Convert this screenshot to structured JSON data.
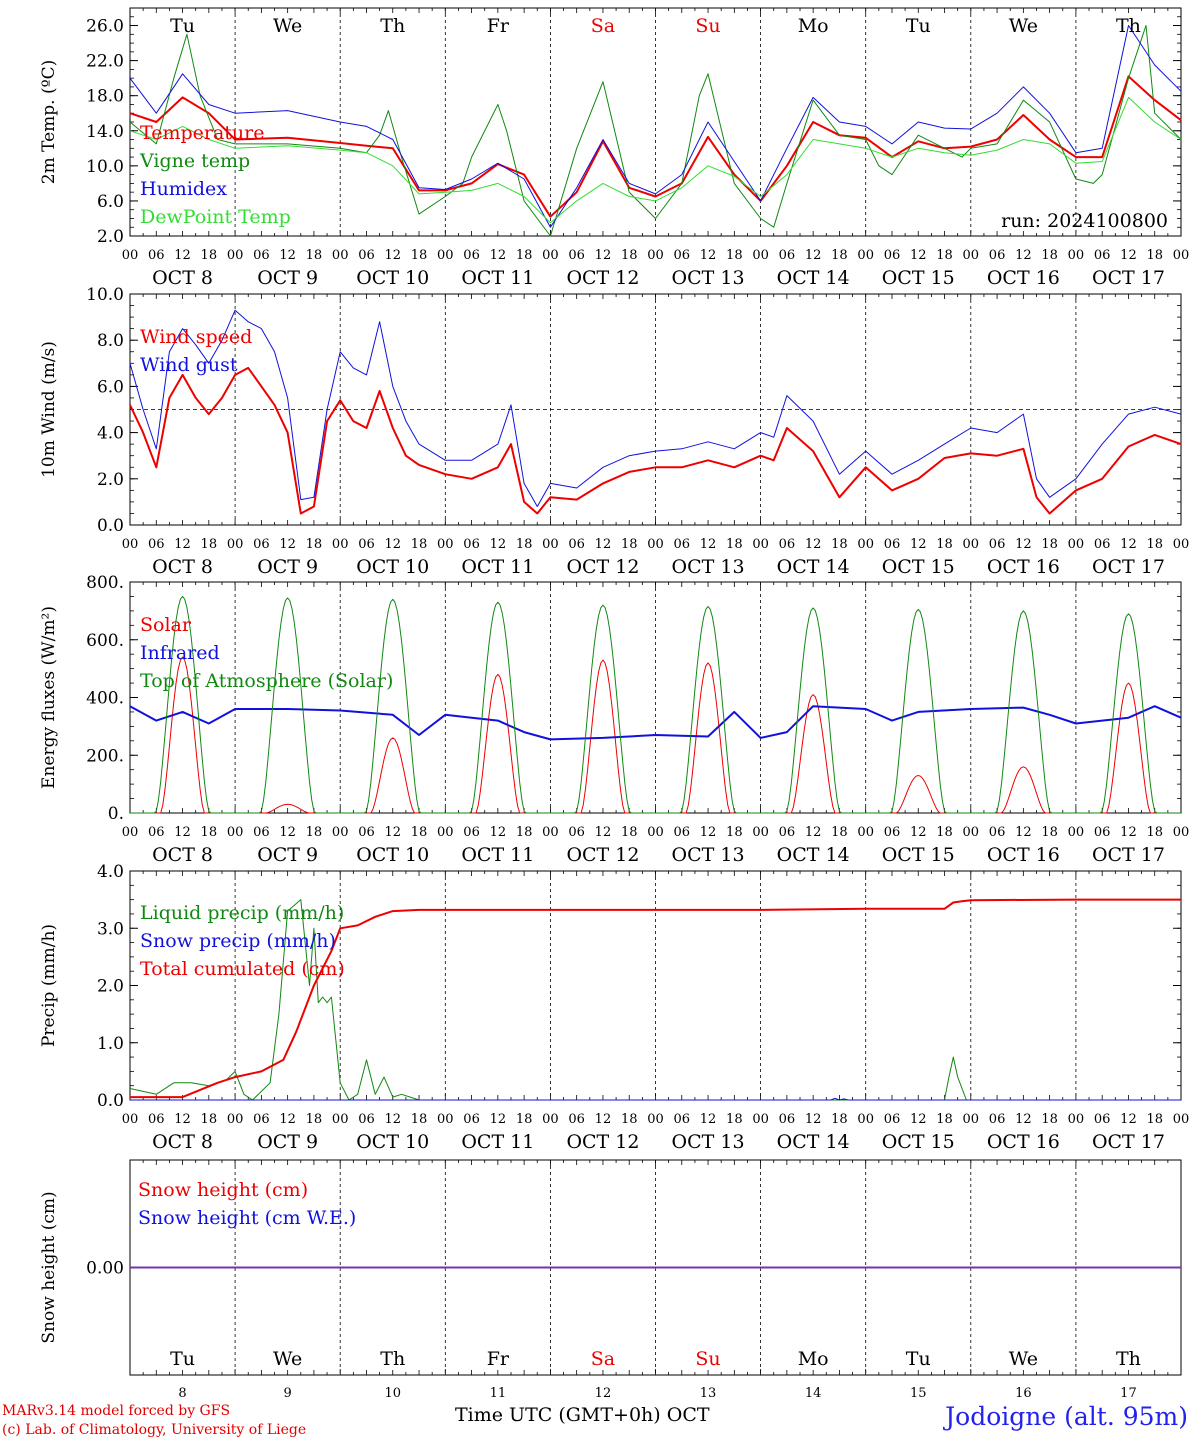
{
  "run_label": "run: 2024100800",
  "days": [
    "Tu",
    "We",
    "Th",
    "Fr",
    "Sa",
    "Su",
    "Mo",
    "Tu",
    "We",
    "Th"
  ],
  "weekend_flags": [
    false,
    false,
    false,
    false,
    true,
    true,
    false,
    false,
    false,
    false
  ],
  "dates": [
    "OCT  8",
    "OCT  9",
    "OCT 10",
    "OCT 11",
    "OCT 12",
    "OCT 13",
    "OCT 14",
    "OCT 15",
    "OCT 16",
    "OCT 17"
  ],
  "hour_ticks": [
    "00",
    "06",
    "12",
    "18"
  ],
  "last_hour_tick": "00",
  "bottom_day_numbers": [
    "8",
    "9",
    "10",
    "11",
    "12",
    "13",
    "14",
    "15",
    "16",
    "17"
  ],
  "xlabel": "Time UTC (GMT+0h)",
  "month_label": "OCT",
  "footer": {
    "line1": "MARv3.14 model forced by GFS",
    "line2": "(c) Lab. of Climatology, University of Liege",
    "location": "Jodoigne (alt. 95m)"
  },
  "colors": {
    "red": "#ee0000",
    "green": "#118811",
    "blue": "#1111dd",
    "light_green": "#33dd33",
    "purple": "#7733aa",
    "weekend": "#ee0000"
  },
  "chart_data": [
    {
      "type": "line",
      "id": "temp",
      "ylabel": "2m Temp. (ºC)",
      "ylim": [
        2,
        28
      ],
      "yticks": [
        "2.0",
        "6.0",
        "10.0",
        "14.0",
        "18.0",
        "22.0",
        "26.0"
      ],
      "ytick_values": [
        2,
        6,
        10,
        14,
        18,
        22,
        26
      ],
      "x_unit": "hours since OCT 8 00 UTC",
      "series": [
        {
          "name": "Temperature",
          "color": "red",
          "width": 2,
          "x": [
            0,
            6,
            12,
            18,
            24,
            36,
            48,
            54,
            60,
            66,
            72,
            78,
            84,
            90,
            96,
            102,
            108,
            114,
            120,
            126,
            132,
            138,
            144,
            150,
            156,
            162,
            168,
            174,
            180,
            186,
            192,
            198,
            204,
            210,
            216,
            222,
            228,
            234,
            240
          ],
          "y": [
            16,
            15,
            17.8,
            16,
            13,
            13.2,
            12.6,
            12.3,
            12,
            7.2,
            7.2,
            8,
            10.2,
            9,
            4.2,
            7,
            12.8,
            7.5,
            6.5,
            8,
            13.3,
            9,
            6,
            10,
            15,
            13.5,
            13.2,
            11,
            12.8,
            12,
            12.2,
            13,
            15.8,
            13,
            11,
            11,
            20.2,
            17.5,
            15.2
          ]
        },
        {
          "name": "Vigne temp",
          "color": "green",
          "width": 1,
          "x": [
            0,
            6,
            10,
            13,
            16,
            20,
            24,
            36,
            48,
            54,
            57,
            59,
            62,
            66,
            72,
            76,
            78,
            84,
            86,
            90,
            96,
            102,
            108,
            114,
            120,
            126,
            130,
            132,
            138,
            144,
            147,
            150,
            156,
            162,
            168,
            171,
            174,
            180,
            186,
            190,
            192,
            198,
            204,
            210,
            216,
            220,
            222,
            228,
            232,
            234,
            240
          ],
          "y": [
            15,
            12.5,
            20,
            25,
            18,
            13,
            12.5,
            12.5,
            12,
            11.5,
            13.5,
            16.3,
            11,
            4.5,
            6.5,
            8,
            11,
            17,
            14,
            6,
            2,
            12,
            19.6,
            7,
            4,
            8,
            18,
            20.5,
            8,
            4,
            3,
            8,
            17.5,
            13.5,
            13,
            10,
            9,
            13.5,
            12,
            11,
            12,
            12.5,
            17.5,
            15,
            8.5,
            8,
            9,
            20,
            26,
            16,
            13
          ]
        },
        {
          "name": "Humidex",
          "color": "blue",
          "width": 1,
          "x": [
            0,
            6,
            12,
            18,
            24,
            36,
            48,
            54,
            60,
            66,
            72,
            78,
            84,
            90,
            96,
            102,
            108,
            114,
            120,
            126,
            132,
            138,
            144,
            150,
            156,
            162,
            168,
            174,
            180,
            186,
            192,
            198,
            204,
            210,
            216,
            222,
            228,
            234,
            240
          ],
          "y": [
            20,
            16,
            20.5,
            17,
            16,
            16.3,
            15,
            14.5,
            13,
            7.5,
            7.3,
            8.5,
            10.3,
            8.5,
            3,
            7.5,
            13,
            8,
            6.8,
            9,
            15,
            10.5,
            6,
            12,
            17.8,
            15,
            14.5,
            12.5,
            15,
            14.3,
            14.2,
            16,
            19,
            16,
            11.5,
            12,
            26,
            21.5,
            18.5
          ]
        },
        {
          "name": "DewPoint Temp",
          "color": "light_green",
          "width": 1,
          "x": [
            0,
            6,
            12,
            18,
            24,
            36,
            48,
            54,
            60,
            66,
            72,
            78,
            84,
            90,
            96,
            102,
            108,
            114,
            120,
            126,
            132,
            138,
            144,
            150,
            156,
            162,
            168,
            174,
            180,
            186,
            192,
            198,
            204,
            210,
            216,
            222,
            228,
            234,
            240
          ],
          "y": [
            14,
            13,
            14.5,
            13,
            12,
            12.3,
            11.8,
            11.5,
            10,
            6.8,
            7,
            7.2,
            8,
            6.5,
            3.5,
            6,
            8,
            6.5,
            6,
            7.5,
            10,
            8.8,
            6.5,
            9,
            13,
            12.5,
            12,
            11,
            12,
            11.5,
            11.2,
            11.8,
            13,
            12.5,
            10.3,
            10.5,
            17.8,
            15,
            13
          ]
        }
      ]
    },
    {
      "type": "line",
      "id": "wind",
      "ylabel": "10m Wind (m/s)",
      "ylim": [
        0,
        10
      ],
      "yticks": [
        "0.0",
        "2.0",
        "4.0",
        "6.0",
        "8.0",
        "10.0"
      ],
      "ytick_values": [
        0,
        2,
        4,
        6,
        8,
        10
      ],
      "reference_line": 5,
      "x_unit": "hours since OCT 8 00 UTC",
      "series": [
        {
          "name": "Wind speed",
          "color": "red",
          "width": 2,
          "x": [
            0,
            3,
            6,
            9,
            12,
            15,
            18,
            21,
            24,
            27,
            30,
            33,
            36,
            39,
            42,
            45,
            48,
            51,
            54,
            57,
            60,
            63,
            66,
            72,
            78,
            84,
            87,
            90,
            93,
            96,
            102,
            108,
            114,
            120,
            126,
            132,
            138,
            144,
            147,
            150,
            156,
            162,
            168,
            174,
            180,
            186,
            192,
            198,
            204,
            207,
            210,
            216,
            222,
            228,
            234,
            240
          ],
          "y": [
            5.2,
            4,
            2.5,
            5.5,
            6.5,
            5.5,
            4.8,
            5.5,
            6.5,
            6.8,
            6,
            5.2,
            4,
            0.5,
            0.8,
            4.5,
            5.4,
            4.5,
            4.2,
            5.8,
            4.2,
            3,
            2.6,
            2.2,
            2,
            2.5,
            3.5,
            1,
            0.5,
            1.2,
            1.1,
            1.8,
            2.3,
            2.5,
            2.5,
            2.8,
            2.5,
            3,
            2.8,
            4.2,
            3.2,
            1.2,
            2.5,
            1.5,
            2,
            2.9,
            3.1,
            3,
            3.3,
            1.2,
            0.5,
            1.5,
            2,
            3.4,
            3.9,
            3.5
          ]
        },
        {
          "name": "Wind gust",
          "color": "blue",
          "width": 1,
          "x": [
            0,
            3,
            6,
            9,
            12,
            15,
            18,
            21,
            24,
            27,
            30,
            33,
            36,
            39,
            42,
            45,
            48,
            51,
            54,
            57,
            60,
            63,
            66,
            72,
            78,
            84,
            87,
            90,
            93,
            96,
            102,
            108,
            114,
            120,
            126,
            132,
            138,
            144,
            147,
            150,
            156,
            162,
            168,
            174,
            180,
            186,
            192,
            198,
            204,
            207,
            210,
            216,
            222,
            228,
            234,
            240
          ],
          "y": [
            7,
            5,
            3.3,
            7.5,
            8.5,
            7.8,
            7,
            8,
            9.3,
            8.8,
            8.5,
            7.5,
            5.5,
            1.1,
            1.2,
            5,
            7.5,
            6.8,
            6.5,
            8.8,
            6,
            4.5,
            3.5,
            2.8,
            2.8,
            3.5,
            5.2,
            1.8,
            0.8,
            1.8,
            1.6,
            2.5,
            3,
            3.2,
            3.3,
            3.6,
            3.3,
            4,
            3.8,
            5.6,
            4.5,
            2.2,
            3.2,
            2.2,
            2.8,
            3.5,
            4.2,
            4,
            4.8,
            2,
            1.2,
            2,
            3.5,
            4.8,
            5.1,
            4.8
          ]
        }
      ]
    },
    {
      "type": "line",
      "id": "energy",
      "ylabel": "Energy fluxes (W/m²)",
      "ylim": [
        0,
        800
      ],
      "yticks": [
        "0.",
        "200.",
        "400.",
        "600.",
        "800."
      ],
      "ytick_values": [
        0,
        200,
        400,
        600,
        800
      ],
      "x_unit": "hours since OCT 8 00 UTC",
      "series": [
        {
          "name": "Solar",
          "color": "red",
          "width": 1,
          "day_peaks": [
            540,
            30,
            260,
            480,
            530,
            520,
            410,
            130,
            160,
            450
          ]
        },
        {
          "name": "Infrared",
          "color": "blue",
          "width": 2,
          "x": [
            0,
            6,
            12,
            18,
            24,
            36,
            48,
            60,
            66,
            72,
            78,
            84,
            90,
            96,
            108,
            120,
            132,
            138,
            144,
            150,
            156,
            168,
            174,
            180,
            192,
            204,
            210,
            216,
            228,
            234,
            240
          ],
          "y": [
            370,
            320,
            350,
            310,
            360,
            360,
            355,
            340,
            270,
            340,
            330,
            320,
            280,
            255,
            260,
            270,
            265,
            350,
            260,
            280,
            370,
            360,
            320,
            350,
            360,
            365,
            340,
            310,
            330,
            370,
            330
          ]
        },
        {
          "name": "Top of Atmosphere (Solar)",
          "color": "green",
          "width": 1,
          "day_peaks": [
            750,
            745,
            740,
            730,
            720,
            715,
            710,
            705,
            700,
            690
          ]
        }
      ]
    },
    {
      "type": "line",
      "id": "precip",
      "ylabel": "Precip (mm/h)",
      "ylim": [
        0,
        4
      ],
      "yticks": [
        "0.0",
        "1.0",
        "2.0",
        "3.0",
        "4.0"
      ],
      "ytick_values": [
        0,
        1,
        2,
        3,
        4
      ],
      "x_unit": "hours since OCT 8 00 UTC",
      "series": [
        {
          "name": "Liquid precip (mm/h)",
          "color": "green",
          "width": 1,
          "x": [
            0,
            6,
            10,
            14,
            18,
            22,
            24,
            26,
            28,
            32,
            34,
            36,
            39,
            41,
            42,
            43,
            44,
            45,
            46,
            48,
            50,
            52,
            54,
            56,
            58,
            60,
            62,
            64,
            66,
            68,
            72,
            186,
            187,
            188,
            189,
            191,
            192,
            240
          ],
          "y": [
            0.2,
            0.1,
            0.3,
            0.3,
            0.25,
            0.35,
            0.5,
            0.1,
            0,
            0.3,
            1.5,
            3.3,
            3.5,
            2,
            3,
            1.7,
            1.8,
            1.7,
            1.8,
            0.3,
            0,
            0.1,
            0.7,
            0.1,
            0.4,
            0.05,
            0.1,
            0.05,
            0,
            0,
            0,
            0,
            0.4,
            0.75,
            0.4,
            0,
            0,
            0
          ]
        },
        {
          "name": "Snow precip (mm/h)",
          "color": "blue",
          "width": 1,
          "x": [
            0,
            160,
            161,
            162,
            163,
            164,
            240
          ],
          "y": [
            0,
            0,
            0.03,
            0,
            0.02,
            0,
            0
          ]
        },
        {
          "name": "Total cumulated (cm)",
          "color": "red",
          "width": 2,
          "x": [
            0,
            12,
            20,
            24,
            30,
            35,
            38,
            42,
            46,
            48,
            52,
            56,
            60,
            66,
            72,
            144,
            168,
            186,
            188,
            190,
            192,
            216,
            240
          ],
          "y": [
            0.05,
            0.05,
            0.3,
            0.4,
            0.5,
            0.7,
            1.2,
            2,
            2.6,
            3,
            3.05,
            3.2,
            3.3,
            3.32,
            3.32,
            3.32,
            3.34,
            3.34,
            3.45,
            3.47,
            3.49,
            3.5,
            3.5
          ]
        }
      ]
    },
    {
      "type": "line",
      "id": "snow",
      "ylabel": "Snow height (cm)",
      "ylim": [
        -1,
        1
      ],
      "yticks": [
        "0.00"
      ],
      "ytick_values": [
        0
      ],
      "x_unit": "hours since OCT 8 00 UTC",
      "series": [
        {
          "name": "Snow height (cm)",
          "color": "red",
          "width": 1,
          "x": [
            0,
            240
          ],
          "y": [
            0,
            0
          ]
        },
        {
          "name": "Snow height (cm W.E.)",
          "color": "blue",
          "width": 1,
          "x": [
            0,
            240
          ],
          "y": [
            0,
            0
          ]
        }
      ]
    }
  ]
}
